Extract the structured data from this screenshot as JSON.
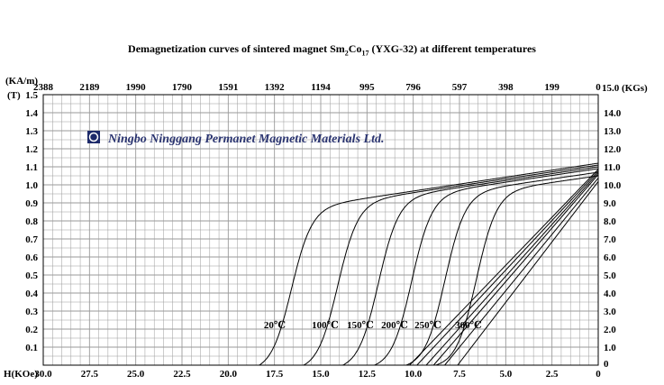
{
  "chart_data": {
    "type": "line",
    "title": {
      "prefix": "Demagnetization curves of sintered magnet Sm",
      "sub1": "2",
      "mid": "Co",
      "sub2": "17",
      "suffix": " (YXG-32) at different temperatures"
    },
    "watermark": "Ningbo Ninggang Permanet Magnetic Materials Ltd.",
    "axes": {
      "x_bottom": {
        "label": "H(KOe)",
        "ticks": [
          "30.0",
          "27.5",
          "25.0",
          "22.5",
          "20.0",
          "17.5",
          "15.0",
          "12.5",
          "10.0",
          "7.5",
          "5.0",
          "2.5",
          "0"
        ],
        "range": [
          30,
          0
        ]
      },
      "x_top": {
        "label": "(KA/m)",
        "ticks": [
          "2388",
          "2189",
          "1990",
          "1790",
          "1591",
          "1392",
          "1194",
          "995",
          "796",
          "597",
          "398",
          "199",
          "0"
        ]
      },
      "y_left": {
        "label": "(T)",
        "ticks": [
          "1.5",
          "1.4",
          "1.3",
          "1.2",
          "1.1",
          "1.0",
          "0.9",
          "0.8",
          "0.7",
          "0.6",
          "0.5",
          "0.4",
          "0.3",
          "0.2",
          "0.1"
        ],
        "range": [
          0,
          1.5
        ]
      },
      "y_right": {
        "label": "15.0 (KGs)",
        "ticks": [
          "14.0",
          "13.0",
          "12.0",
          "11.0",
          "10.0",
          "9.0",
          "8.0",
          "7.0",
          "6.0",
          "5.0",
          "4.0",
          "3.0",
          "2.0",
          "1.0",
          "0"
        ]
      },
      "grid": true
    },
    "series": [
      {
        "name": "20℃",
        "Br": 1.12,
        "Hcj": 17.5,
        "Hcb": 10.2
      },
      {
        "name": "100℃",
        "Br": 1.11,
        "Hcj": 15.0,
        "Hcb": 9.8
      },
      {
        "name": "150℃",
        "Br": 1.1,
        "Hcj": 12.8,
        "Hcb": 9.3
      },
      {
        "name": "200℃",
        "Br": 1.09,
        "Hcj": 11.0,
        "Hcb": 8.9
      },
      {
        "name": "250℃",
        "Br": 1.07,
        "Hcj": 9.2,
        "Hcb": 8.3
      },
      {
        "name": "300℃",
        "Br": 1.05,
        "Hcj": 7.5,
        "Hcb": 7.6
      }
    ],
    "line_color": "#000000",
    "grid_color": "#9a9a9a"
  }
}
